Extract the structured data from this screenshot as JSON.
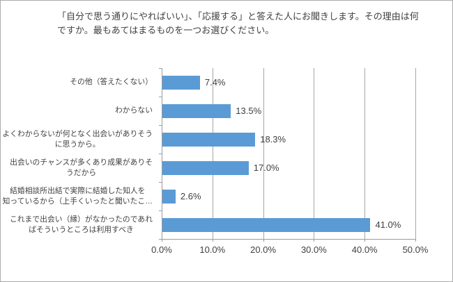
{
  "chart_data": {
    "type": "bar",
    "orientation": "horizontal",
    "title": "「自分で思う通りにやればいい」、「応援する」と答えた人にお聞きします。その理由は何ですか。最もあてはまるものを一つお選びください。",
    "categories": [
      "その他（答えたくない）",
      "わからない",
      "よくわからないが何となく出会いがありそう\nに思うから。",
      "出会いのチャンスが多くあり成果がありそ\nうだから",
      "結婚相談所出結で実際に結婚した知人を\n知っているから（上手くいったと聞いたこ…",
      "これまで出会い（縁）がなかったのであれ\nばそういうところは利用すべき"
    ],
    "values": [
      7.4,
      13.5,
      18.3,
      17.0,
      2.6,
      41.0
    ],
    "data_labels": [
      "7.4%",
      "13.5%",
      "18.3%",
      "17.0%",
      "2.6%",
      "41.0%"
    ],
    "x_axis": {
      "max": 50,
      "ticks": [
        {
          "label": "0.0%",
          "value": 0
        },
        {
          "label": "10.0%",
          "value": 10
        },
        {
          "label": "20.0%",
          "value": 20
        },
        {
          "label": "30.0%",
          "value": 30
        },
        {
          "label": "40.0%",
          "value": 40
        },
        {
          "label": "50.0%",
          "value": 50
        }
      ]
    },
    "grid": true,
    "legend": "none",
    "bar_color": "#5B9BD5",
    "gridline_color": "#a6a6a6",
    "axis_color": "#9b9b9b",
    "text_color": "#404040"
  }
}
